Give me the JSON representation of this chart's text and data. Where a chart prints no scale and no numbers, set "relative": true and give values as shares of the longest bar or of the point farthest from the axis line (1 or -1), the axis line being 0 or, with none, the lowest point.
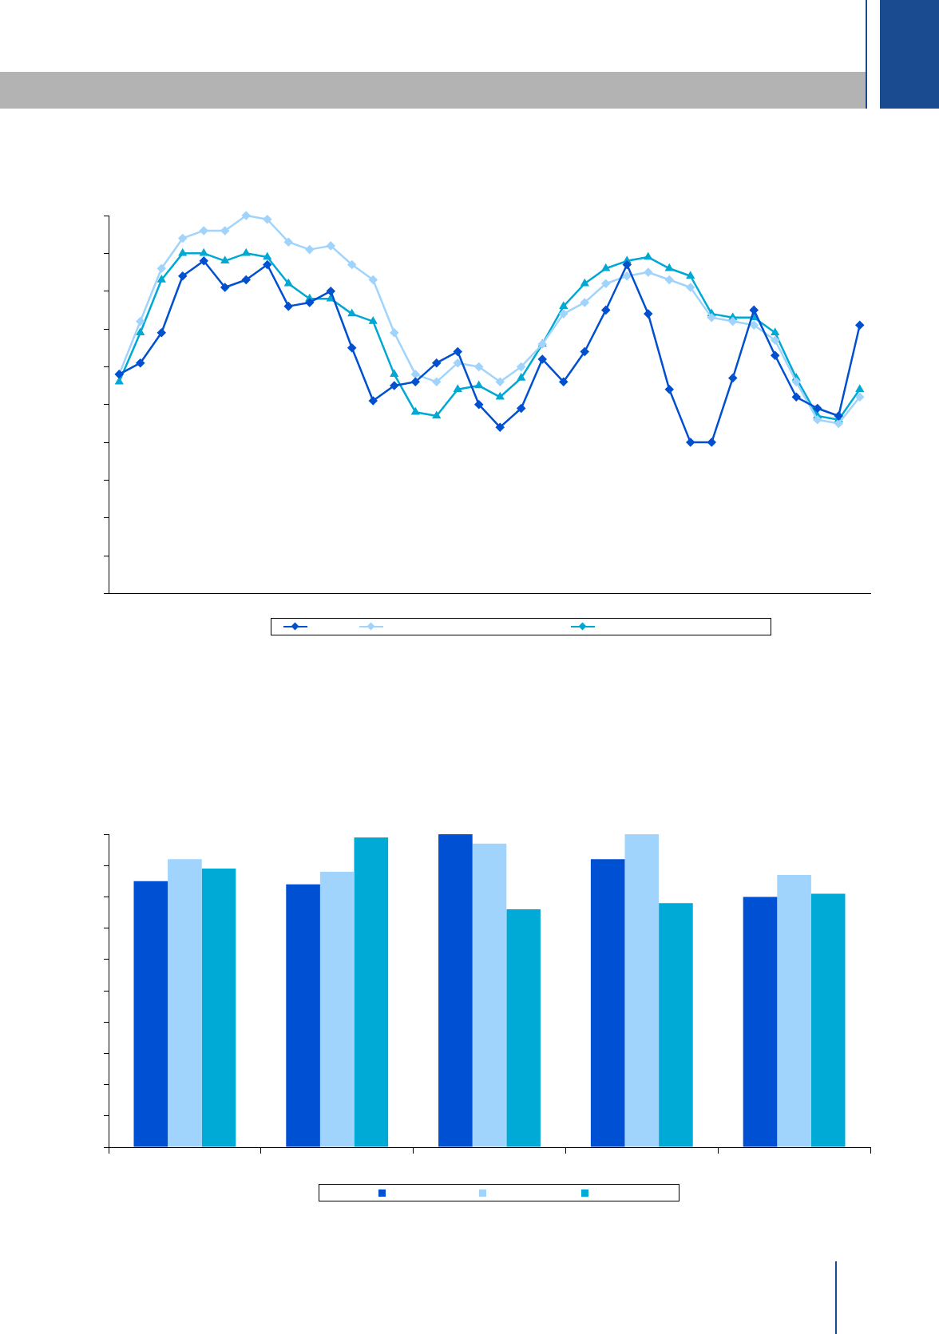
{
  "chart_data": [
    {
      "type": "line",
      "relative": true,
      "marker": "diamond",
      "categories": [
        null,
        null,
        null,
        null,
        null,
        null,
        null,
        null,
        null,
        null,
        null,
        null,
        null,
        null,
        null,
        null,
        null,
        null,
        null,
        null,
        null,
        null,
        null,
        null,
        null,
        null,
        null,
        null,
        null,
        null,
        null,
        null,
        null,
        null,
        null,
        null
      ],
      "series": [
        {
          "color": "#0050d0",
          "values": [
            0.58,
            0.61,
            0.69,
            0.84,
            0.88,
            0.81,
            0.83,
            0.87,
            0.76,
            0.77,
            0.8,
            0.65,
            0.51,
            0.55,
            0.56,
            0.61,
            0.64,
            0.5,
            0.44,
            0.49,
            0.62,
            0.56,
            0.64,
            0.75,
            0.87,
            0.74,
            0.54,
            0.4,
            0.4,
            0.57,
            0.75,
            0.63,
            0.52,
            0.49,
            0.47,
            0.71
          ]
        },
        {
          "color": "#a0d4fc",
          "values": [
            0.58,
            0.72,
            0.86,
            0.94,
            0.96,
            0.96,
            1,
            0.99,
            0.93,
            0.91,
            0.92,
            0.87,
            0.83,
            0.69,
            0.58,
            0.56,
            0.61,
            0.6,
            0.56,
            0.6,
            0.66,
            0.74,
            0.77,
            0.82,
            0.84,
            0.85,
            0.83,
            0.81,
            0.73,
            0.72,
            0.71,
            0.67,
            0.56,
            0.46,
            0.45,
            0.52
          ]
        },
        {
          "color": "#00a8d4",
          "marker": "triangle",
          "values": [
            0.56,
            0.69,
            0.83,
            0.9,
            0.9,
            0.88,
            0.9,
            0.89,
            0.82,
            0.78,
            0.78,
            0.74,
            0.72,
            0.58,
            0.48,
            0.47,
            0.54,
            0.55,
            0.52,
            0.57,
            0.66,
            0.76,
            0.82,
            0.86,
            0.88,
            0.89,
            0.86,
            0.84,
            0.74,
            0.73,
            0.73,
            0.69,
            0.57,
            0.47,
            0.46,
            0.54
          ]
        }
      ]
    },
    {
      "type": "bar",
      "relative": true,
      "categories": [
        null,
        null,
        null,
        null,
        null
      ],
      "series": [
        {
          "color": "#0050d4",
          "values": [
            0.85,
            0.84,
            1,
            0.92,
            0.8
          ]
        },
        {
          "color": "#a0d4fc",
          "values": [
            0.92,
            0.88,
            0.97,
            1.0,
            0.87
          ]
        },
        {
          "color": "#00aad6",
          "values": [
            0.89,
            0.99,
            0.76,
            0.78,
            0.81
          ]
        }
      ]
    }
  ]
}
